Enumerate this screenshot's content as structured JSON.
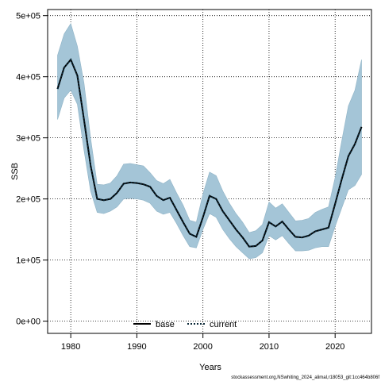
{
  "chart_data": {
    "type": "area",
    "xlabel": "Years",
    "ylabel": "SSB",
    "xlim": [
      1976.5,
      2025.5
    ],
    "ylim": [
      -20000,
      510000
    ],
    "x_ticks": [
      1980,
      1990,
      2000,
      2010,
      2020
    ],
    "x_tick_labels": [
      "1980",
      "1990",
      "2000",
      "2010",
      "2020"
    ],
    "y_ticks": [
      0,
      100000,
      200000,
      300000,
      400000,
      500000
    ],
    "y_tick_labels": [
      "0e+00",
      "1e+05",
      "2e+05",
      "3e+05",
      "4e+05",
      "5e+05"
    ],
    "grid": true,
    "grid_style": "dotted",
    "legend_position": "bottom-center",
    "colors": {
      "band": "#a4c5d7",
      "band_edge": "#8fb3c6",
      "base": "#000000",
      "current": "#0a2838"
    },
    "legend": [
      {
        "label": "base",
        "style": "solid"
      },
      {
        "label": "current",
        "style": "dotted"
      }
    ],
    "footer": "stockassessment.org,NSwhiting_2024_alimal,r18053_git:1cc464b806f",
    "years": [
      1978,
      1979,
      1980,
      1981,
      1982,
      1983,
      1984,
      1985,
      1986,
      1987,
      1988,
      1989,
      1990,
      1991,
      1992,
      1993,
      1994,
      1995,
      1996,
      1997,
      1998,
      1999,
      2000,
      2001,
      2002,
      2003,
      2004,
      2005,
      2006,
      2007,
      2008,
      2009,
      2010,
      2011,
      2012,
      2013,
      2014,
      2015,
      2016,
      2017,
      2018,
      2019,
      2020,
      2021,
      2022,
      2023,
      2024
    ],
    "series": [
      {
        "name": "base",
        "style": "solid",
        "values": [
          380000,
          415000,
          428000,
          402000,
          330000,
          255000,
          200000,
          198000,
          200000,
          210000,
          225000,
          227000,
          226000,
          224000,
          220000,
          205000,
          198000,
          202000,
          182000,
          162000,
          143000,
          138000,
          170000,
          205000,
          200000,
          180000,
          165000,
          150000,
          137000,
          122000,
          123000,
          132000,
          162000,
          155000,
          163000,
          150000,
          138000,
          137000,
          140000,
          147000,
          150000,
          153000,
          192000,
          232000,
          270000,
          290000,
          318000
        ]
      },
      {
        "name": "current",
        "style": "dotted",
        "values": [
          380000,
          415000,
          428000,
          402000,
          330000,
          255000,
          200000,
          198000,
          200000,
          210000,
          225000,
          227000,
          226000,
          224000,
          220000,
          205000,
          198000,
          202000,
          182000,
          162000,
          143000,
          138000,
          170000,
          205000,
          200000,
          180000,
          165000,
          150000,
          137000,
          122000,
          123000,
          132000,
          162000,
          155000,
          163000,
          150000,
          138000,
          137000,
          140000,
          147000,
          150000,
          153000,
          192000,
          232000,
          270000,
          290000,
          318000
        ]
      }
    ],
    "band_upper": [
      435000,
      470000,
      487000,
      450000,
      390000,
      300000,
      224000,
      223000,
      226000,
      238000,
      257000,
      258000,
      256000,
      254000,
      243000,
      230000,
      225000,
      232000,
      210000,
      190000,
      165000,
      162000,
      208000,
      244000,
      238000,
      213000,
      193000,
      176000,
      162000,
      145000,
      148000,
      158000,
      195000,
      185000,
      192000,
      178000,
      164000,
      165000,
      168000,
      178000,
      183000,
      187000,
      235000,
      295000,
      352000,
      378000,
      428000
    ],
    "band_lower": [
      330000,
      365000,
      378000,
      355000,
      280000,
      213000,
      178000,
      176000,
      180000,
      187000,
      200000,
      201000,
      200000,
      198000,
      193000,
      180000,
      175000,
      178000,
      160000,
      140000,
      122000,
      120000,
      150000,
      176000,
      170000,
      150000,
      135000,
      122000,
      112000,
      102000,
      104000,
      112000,
      140000,
      133000,
      140000,
      127000,
      115000,
      115000,
      116000,
      120000,
      122000,
      122000,
      155000,
      185000,
      215000,
      222000,
      240000
    ]
  }
}
